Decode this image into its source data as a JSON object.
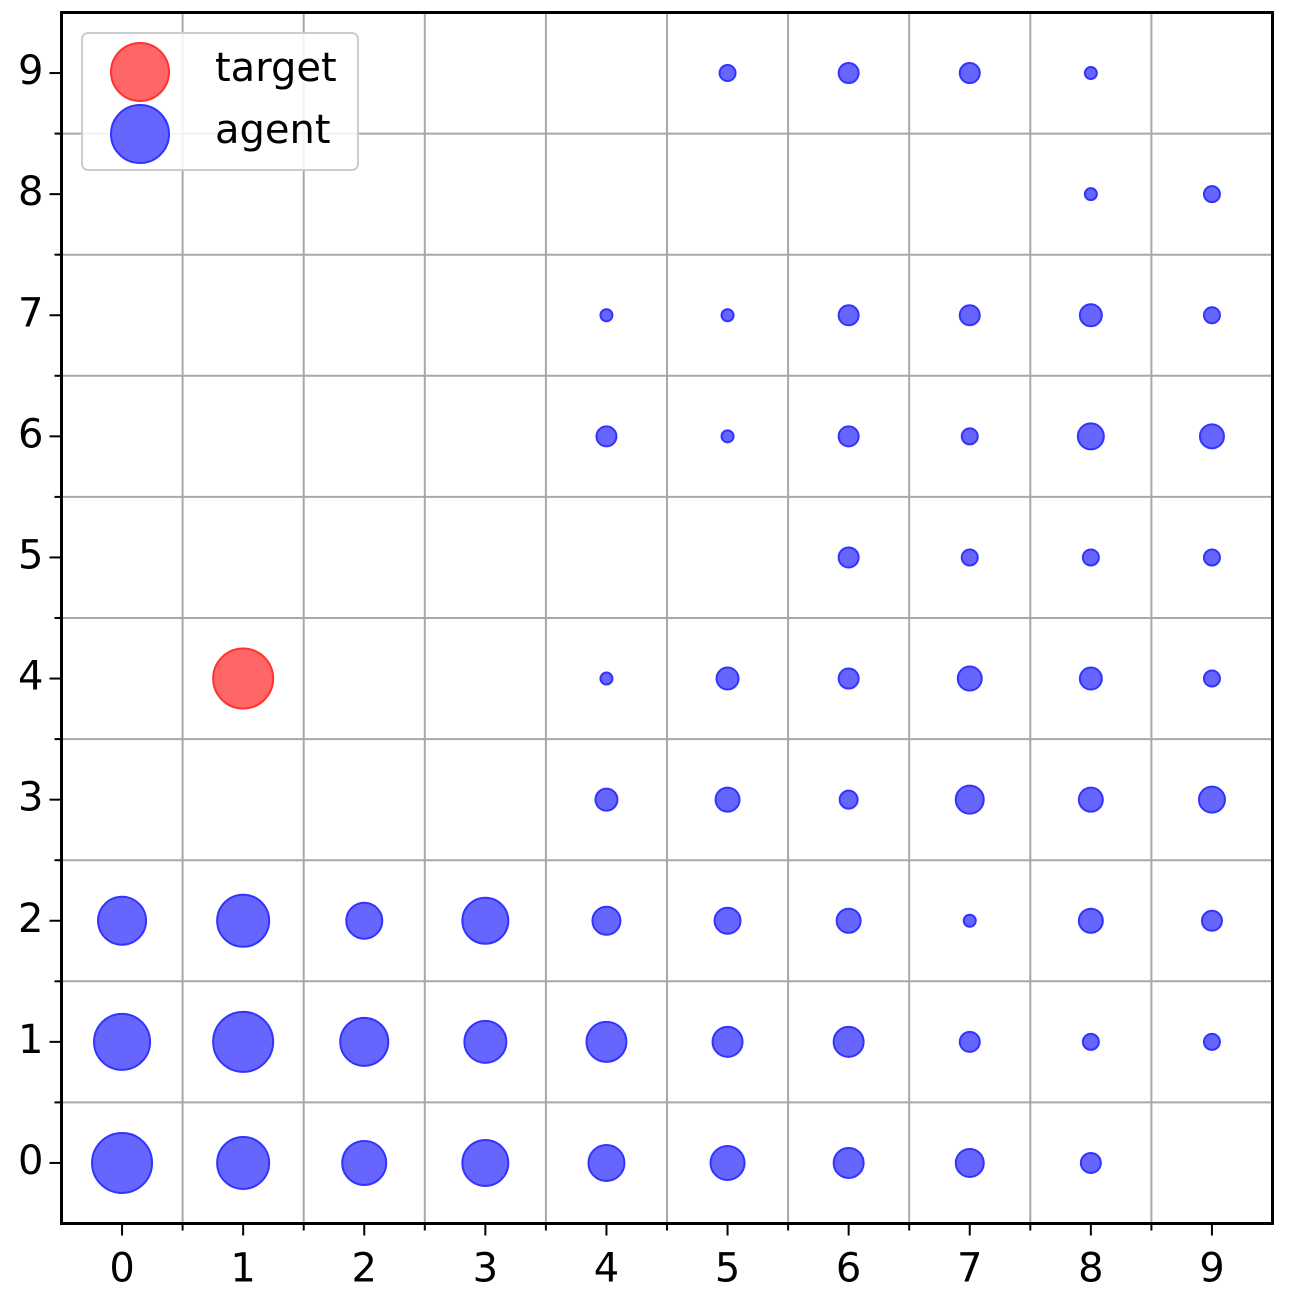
{
  "chart_data": {
    "type": "scatter",
    "xlim": [
      -0.5,
      9.5
    ],
    "ylim": [
      -0.5,
      9.5
    ],
    "xticks": [
      0,
      1,
      2,
      3,
      4,
      5,
      6,
      7,
      8,
      9
    ],
    "yticks": [
      0,
      1,
      2,
      3,
      4,
      5,
      6,
      7,
      8,
      9
    ],
    "minor_xticks": [
      0.5,
      1.5,
      2.5,
      3.5,
      4.5,
      5.5,
      6.5,
      7.5,
      8.5
    ],
    "minor_yticks": [
      0.5,
      1.5,
      2.5,
      3.5,
      4.5,
      5.5,
      6.5,
      7.5,
      8.5
    ],
    "grid": true,
    "legend": "upper left",
    "series": [
      {
        "name": "target",
        "color": "#ff3333",
        "x": [
          1
        ],
        "y": [
          4
        ],
        "sizes": [
          30
        ]
      },
      {
        "name": "agent",
        "color": "#3333ff",
        "x": [
          5,
          6,
          7,
          8,
          8,
          9,
          4,
          5,
          6,
          7,
          8,
          9,
          4,
          5,
          6,
          7,
          8,
          9,
          6,
          7,
          8,
          9,
          4,
          5,
          6,
          7,
          8,
          9,
          4,
          5,
          6,
          7,
          8,
          9,
          0,
          1,
          2,
          3,
          4,
          5,
          6,
          7,
          8,
          9,
          0,
          1,
          2,
          3,
          4,
          5,
          6,
          7,
          8,
          9,
          0,
          1,
          2,
          3,
          4,
          5,
          6,
          7,
          8
        ],
        "y": [
          9,
          9,
          9,
          9,
          8,
          8,
          7,
          7,
          7,
          7,
          7,
          7,
          6,
          6,
          6,
          6,
          6,
          6,
          5,
          5,
          5,
          5,
          4,
          4,
          4,
          4,
          4,
          4,
          3,
          3,
          3,
          3,
          3,
          3,
          2,
          2,
          2,
          2,
          2,
          2,
          2,
          2,
          2,
          2,
          1,
          1,
          1,
          1,
          1,
          1,
          1,
          1,
          1,
          1,
          0,
          0,
          0,
          0,
          0,
          0,
          0,
          0,
          0
        ],
        "sizes": [
          8,
          10,
          10,
          6,
          6,
          8,
          6,
          6,
          10,
          10,
          11,
          8,
          10,
          6,
          10,
          8,
          13,
          12,
          10,
          8,
          8,
          8,
          6,
          11,
          10,
          12,
          11,
          8,
          11,
          12,
          9,
          14,
          12,
          13,
          24,
          26,
          18,
          23,
          14,
          13,
          12,
          6,
          12,
          10,
          28,
          30,
          24,
          21,
          20,
          15,
          15,
          10,
          8,
          8,
          30,
          26,
          22,
          23,
          18,
          17,
          15,
          14,
          10
        ]
      }
    ]
  }
}
